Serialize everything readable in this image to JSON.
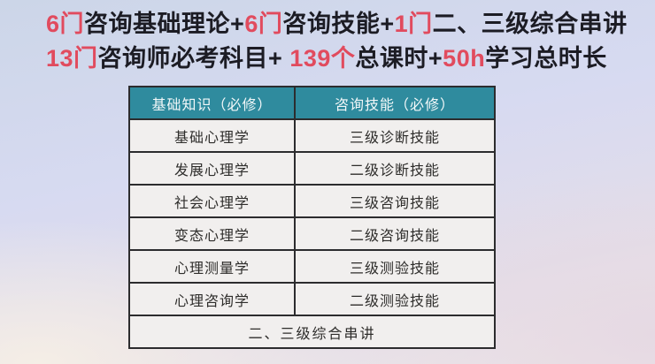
{
  "headline": {
    "line1": [
      {
        "text": "6门",
        "accent": true
      },
      {
        "text": "咨询基础理论+",
        "accent": false
      },
      {
        "text": "6门",
        "accent": true
      },
      {
        "text": "咨询技能+",
        "accent": false
      },
      {
        "text": "1门",
        "accent": true
      },
      {
        "text": "二、三级综合串讲",
        "accent": false
      }
    ],
    "line2": [
      {
        "text": "13门",
        "accent": true
      },
      {
        "text": "咨询师必考科目+ ",
        "accent": false
      },
      {
        "text": "139个",
        "accent": true
      },
      {
        "text": "总课时+",
        "accent": false
      },
      {
        "text": "50h",
        "accent": true
      },
      {
        "text": "学习总时长",
        "accent": false
      }
    ]
  },
  "table": {
    "headers": [
      "基础知识（必修）",
      "咨询技能（必修）"
    ],
    "rows": [
      {
        "left": "基础心理学",
        "right": "三级诊断技能"
      },
      {
        "left": "发展心理学",
        "right": "二级诊断技能"
      },
      {
        "left": "社会心理学",
        "right": "三级咨询技能"
      },
      {
        "left": "变态心理学",
        "right": "二级咨询技能"
      },
      {
        "left": "心理测量学",
        "right": "三级测验技能"
      },
      {
        "left": "心理咨询学",
        "right": "二级测验技能"
      }
    ],
    "footer": "二、三级综合串讲"
  },
  "colors": {
    "accent": "#e14b5e",
    "text_dark": "#1c1c24",
    "table_header_bg": "#2f8b9e",
    "table_header_text": "#f3f8f9",
    "cell_bg": "#f1efee",
    "cell_text": "#2e2d2b",
    "border": "#2c2c2e",
    "bg_blue_gray": "#ccd6e8",
    "bg_periwinkle": "#d7daf1",
    "bg_pink": "#e6d9e3",
    "bg_cream": "#f5eee6"
  }
}
